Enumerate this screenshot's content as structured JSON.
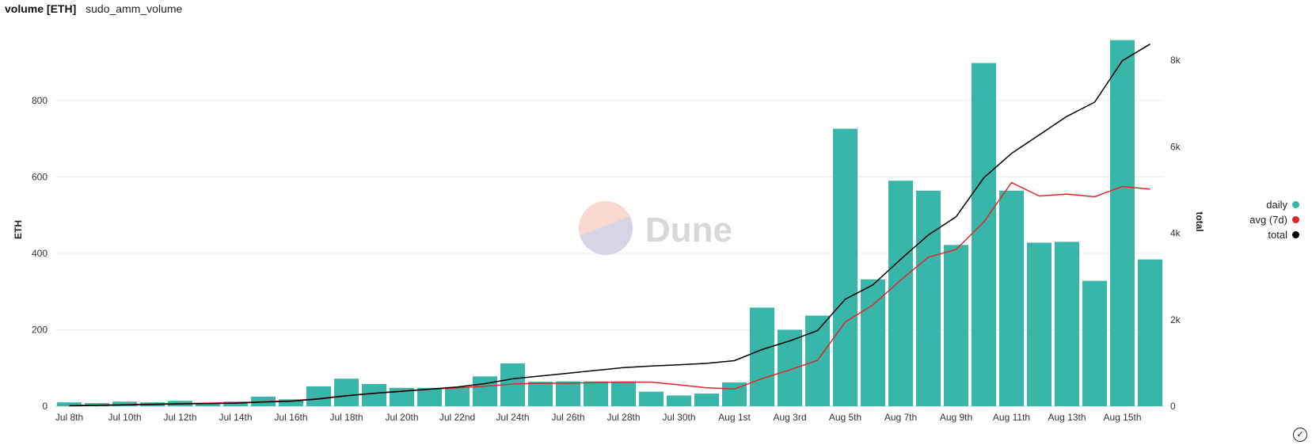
{
  "header": {
    "title": "volume [ETH]",
    "subtitle": "sudo_amm_volume"
  },
  "watermark": {
    "text": "Dune"
  },
  "icons": {
    "status": "check-circle-icon"
  },
  "chart_data": {
    "type": "bar",
    "title": "volume [ETH]",
    "subtitle": "sudo_amm_volume",
    "ylabel": "ETH",
    "y2label": "total",
    "ylim": [
      0,
      980
    ],
    "y2lim": [
      0,
      8660
    ],
    "yticks": [
      0,
      200,
      400,
      600,
      800
    ],
    "y2ticks": [
      {
        "v": 0,
        "label": "0"
      },
      {
        "v": 2000,
        "label": "2k"
      },
      {
        "v": 4000,
        "label": "4k"
      },
      {
        "v": 6000,
        "label": "6k"
      },
      {
        "v": 8000,
        "label": "8k"
      }
    ],
    "grid": true,
    "legend_position": "right",
    "categories": [
      "Jul 8th",
      "Jul 9th",
      "Jul 10th",
      "Jul 11th",
      "Jul 12th",
      "Jul 13th",
      "Jul 14th",
      "Jul 15th",
      "Jul 16th",
      "Jul 17th",
      "Jul 18th",
      "Jul 19th",
      "Jul 20th",
      "Jul 21st",
      "Jul 22nd",
      "Jul 23rd",
      "Jul 24th",
      "Jul 25th",
      "Jul 26th",
      "Jul 27th",
      "Jul 28th",
      "Jul 29th",
      "Jul 30th",
      "Jul 31st",
      "Aug 1st",
      "Aug 2nd",
      "Aug 3rd",
      "Aug 4th",
      "Aug 5th",
      "Aug 6th",
      "Aug 7th",
      "Aug 8th",
      "Aug 9th",
      "Aug 10th",
      "Aug 11th",
      "Aug 12th",
      "Aug 13th",
      "Aug 14th",
      "Aug 15th",
      "Aug 16th"
    ],
    "tick_labels": [
      "Jul 8th",
      "Jul 10th",
      "Jul 12th",
      "Jul 14th",
      "Jul 16th",
      "Jul 18th",
      "Jul 20th",
      "Jul 22nd",
      "Jul 24th",
      "Jul 26th",
      "Jul 28th",
      "Jul 30th",
      "Aug 1st",
      "Aug 3rd",
      "Aug 5th",
      "Aug 7th",
      "Aug 9th",
      "Aug 11th",
      "Aug 13th",
      "Aug 15th"
    ],
    "series": [
      {
        "name": "daily",
        "kind": "bar",
        "axis": "left",
        "color": "#37b6a9",
        "values": [
          10,
          8,
          12,
          10,
          14,
          6,
          12,
          25,
          18,
          52,
          72,
          58,
          48,
          48,
          50,
          78,
          112,
          64,
          65,
          65,
          65,
          38,
          28,
          33,
          62,
          258,
          200,
          237,
          726,
          332,
          590,
          564,
          422,
          898,
          564,
          428,
          430,
          328,
          958,
          384
        ]
      },
      {
        "name": "avg (7d)",
        "kind": "line",
        "axis": "left",
        "color": "#e0262b",
        "values": [
          2,
          3,
          4,
          6,
          7,
          8,
          9,
          12,
          14,
          20,
          28,
          34,
          40,
          44,
          48,
          52,
          58,
          60,
          60,
          62,
          63,
          63,
          56,
          48,
          45,
          72,
          95,
          120,
          220,
          265,
          330,
          390,
          410,
          482,
          585,
          550,
          555,
          548,
          575,
          568
        ]
      },
      {
        "name": "total",
        "kind": "line",
        "axis": "right",
        "color": "#000000",
        "values": [
          10,
          18,
          30,
          40,
          54,
          60,
          72,
          97,
          115,
          167,
          239,
          297,
          345,
          393,
          443,
          521,
          633,
          697,
          762,
          827,
          892,
          930,
          958,
          991,
          1053,
          1311,
          1511,
          1748,
          2474,
          2806,
          3396,
          3960,
          4382,
          5280,
          5844,
          6272,
          6702,
          7030,
          7988,
          8372
        ]
      }
    ]
  }
}
